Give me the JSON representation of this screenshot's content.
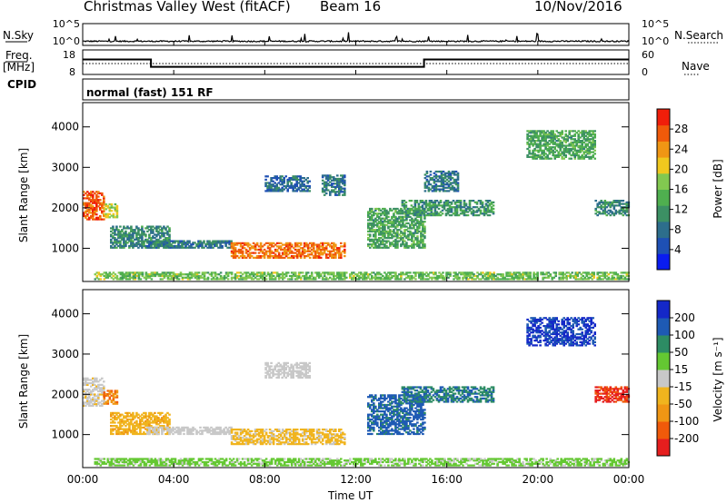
{
  "header": {
    "station": "Christmas Valley West (fitACF)",
    "beam": "Beam 16",
    "date": "10/Nov/2016"
  },
  "left_labels": {
    "nsky": "N.Sky",
    "freq": "Freq.",
    "freq_unit": "[MHz]",
    "cpid": "CPID"
  },
  "right_labels": {
    "nsearch": "N.Search",
    "nave": "Nave"
  },
  "cpid_text": "normal (fast) 151 RF",
  "chart_data": [
    {
      "type": "line",
      "panel": "noise",
      "yticks_left": [
        "10^5",
        "10^0"
      ],
      "yticks_right": [
        "10^5",
        "10^0"
      ],
      "description_values": {
        "baseline_log10": 0.8,
        "spikes_log10_max": 3.0
      }
    },
    {
      "type": "line",
      "panel": "frequency",
      "yticks_left": [
        "18",
        "8"
      ],
      "yticks_right": [
        "60",
        "0"
      ],
      "series": [
        {
          "x_hours": [
            0,
            3,
            3,
            15,
            15,
            24
          ],
          "freq_mhz": [
            13,
            13,
            10,
            10,
            13,
            13
          ]
        }
      ],
      "nave_dotted": 20
    },
    {
      "type": "heatmap",
      "panel": "power",
      "ylabel": "Slant Range [km]",
      "ylim": [
        180,
        4600
      ],
      "yticks": [
        "1000",
        "2000",
        "3000",
        "4000"
      ],
      "colorbar": {
        "label": "Power [dB]",
        "ticks": [
          "4",
          "8",
          "12",
          "16",
          "20",
          "24",
          "28"
        ],
        "range": [
          0,
          30
        ],
        "colors": [
          "#0a1cf0",
          "#1e50b4",
          "#2d6e8c",
          "#3c9064",
          "#4faf4f",
          "#82c850",
          "#f0c81e",
          "#f09614",
          "#f05a0a",
          "#f01e0a"
        ]
      },
      "blobs": [
        {
          "t": [
            0.0,
            0.9
          ],
          "r": [
            1700,
            2400
          ],
          "level": 0.9
        },
        {
          "t": [
            0.9,
            1.5
          ],
          "r": [
            1750,
            2100
          ],
          "level": 0.6
        },
        {
          "t": [
            1.2,
            3.8
          ],
          "r": [
            1000,
            1550
          ],
          "level": 0.3
        },
        {
          "t": [
            2.8,
            6.5
          ],
          "r": [
            1000,
            1200
          ],
          "level": 0.25
        },
        {
          "t": [
            6.5,
            11.5
          ],
          "r": [
            750,
            1150
          ],
          "level": 0.85
        },
        {
          "t": [
            8.0,
            10.0
          ],
          "r": [
            2400,
            2800
          ],
          "level": 0.2
        },
        {
          "t": [
            10.5,
            11.5
          ],
          "r": [
            2300,
            2800
          ],
          "level": 0.25
        },
        {
          "t": [
            12.5,
            15.0
          ],
          "r": [
            1000,
            2000
          ],
          "level": 0.4
        },
        {
          "t": [
            14.0,
            18.0
          ],
          "r": [
            1800,
            2200
          ],
          "level": 0.35
        },
        {
          "t": [
            15.0,
            16.5
          ],
          "r": [
            2400,
            2900
          ],
          "level": 0.25
        },
        {
          "t": [
            19.5,
            22.5
          ],
          "r": [
            3200,
            3900
          ],
          "level": 0.4
        },
        {
          "t": [
            22.5,
            24.0
          ],
          "r": [
            1800,
            2200
          ],
          "level": 0.3
        },
        {
          "t": [
            0.5,
            24.0
          ],
          "r": [
            220,
            420
          ],
          "level": 0.5
        }
      ]
    },
    {
      "type": "heatmap",
      "panel": "velocity",
      "ylabel": "Slant Range [km]",
      "ylim": [
        180,
        4600
      ],
      "yticks": [
        "1000",
        "2000",
        "3000",
        "4000"
      ],
      "colorbar": {
        "label": "Velocity [m s⁻¹]",
        "ticks": [
          "-200",
          "-100",
          "-50",
          "-15",
          "15",
          "50",
          "100",
          "200"
        ],
        "range": [
          -250,
          250
        ],
        "colors": [
          "#e61e1e",
          "#f05a0a",
          "#f09614",
          "#f0b41e",
          "#c8c8c8",
          "#64c832",
          "#2d8c64",
          "#1e5ab4",
          "#1428c8"
        ]
      },
      "blobs": [
        {
          "t": [
            0.0,
            0.9
          ],
          "r": [
            1700,
            2400
          ],
          "level": -0.05
        },
        {
          "t": [
            0.9,
            1.5
          ],
          "r": [
            1750,
            2100
          ],
          "level": -0.6
        },
        {
          "t": [
            1.2,
            3.8
          ],
          "r": [
            1000,
            1550
          ],
          "level": -0.3
        },
        {
          "t": [
            2.8,
            6.5
          ],
          "r": [
            1000,
            1200
          ],
          "level": 0.0
        },
        {
          "t": [
            6.5,
            11.5
          ],
          "r": [
            750,
            1150
          ],
          "level": -0.2
        },
        {
          "t": [
            8.0,
            10.0
          ],
          "r": [
            2400,
            2800
          ],
          "level": 0.0
        },
        {
          "t": [
            12.5,
            15.0
          ],
          "r": [
            1000,
            2000
          ],
          "level": 0.7
        },
        {
          "t": [
            14.0,
            18.0
          ],
          "r": [
            1800,
            2200
          ],
          "level": 0.6
        },
        {
          "t": [
            19.5,
            22.5
          ],
          "r": [
            3200,
            3900
          ],
          "level": 0.9
        },
        {
          "t": [
            22.5,
            24.0
          ],
          "r": [
            1800,
            2200
          ],
          "level": -0.9
        },
        {
          "t": [
            0.5,
            24.0
          ],
          "r": [
            220,
            420
          ],
          "level": 0.2
        }
      ]
    }
  ],
  "xaxis": {
    "label": "Time UT",
    "ticks": [
      "00:00",
      "04:00",
      "08:00",
      "12:00",
      "16:00",
      "20:00",
      "00:00"
    ],
    "range_hours": [
      0,
      24
    ]
  }
}
